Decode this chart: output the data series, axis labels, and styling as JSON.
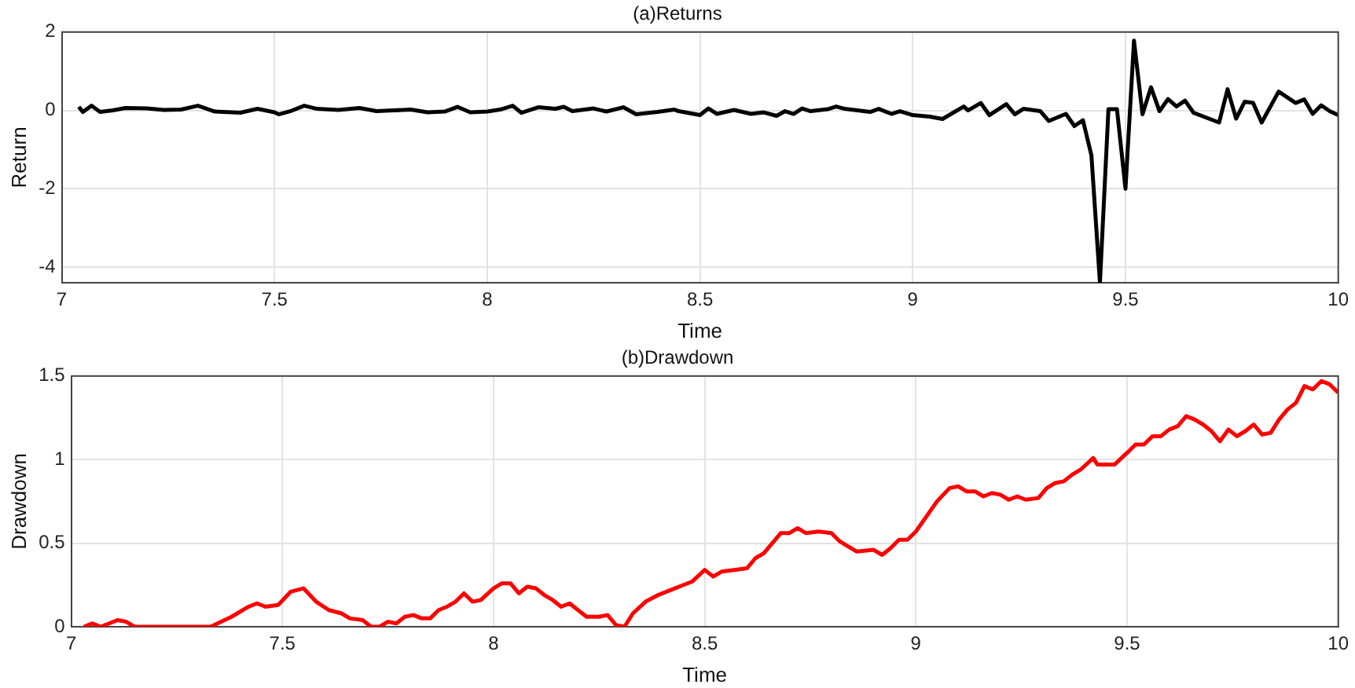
{
  "chart_data": [
    {
      "type": "line",
      "title": "(a)Returns",
      "xlabel": "Time",
      "ylabel": "Return",
      "xlim": [
        7,
        10
      ],
      "xticks": [
        7,
        7.5,
        8,
        8.5,
        9,
        9.5,
        10
      ],
      "ylim": [
        -4.4,
        2
      ],
      "yticks": [
        -4,
        -2,
        0,
        2
      ],
      "grid": true,
      "marker": "none",
      "line_style": "solid",
      "legend": false,
      "series": [
        {
          "color": "#000000",
          "x": [
            7.04,
            7.05,
            7.07,
            7.09,
            7.12,
            7.15,
            7.2,
            7.24,
            7.28,
            7.32,
            7.36,
            7.42,
            7.46,
            7.5,
            7.51,
            7.54,
            7.57,
            7.6,
            7.65,
            7.7,
            7.74,
            7.78,
            7.82,
            7.86,
            7.9,
            7.93,
            7.96,
            8,
            8.03,
            8.06,
            8.08,
            8.12,
            8.16,
            8.18,
            8.2,
            8.25,
            8.28,
            8.32,
            8.35,
            8.4,
            8.44,
            8.45,
            8.5,
            8.52,
            8.54,
            8.58,
            8.62,
            8.65,
            8.68,
            8.7,
            8.72,
            8.74,
            8.76,
            8.8,
            8.82,
            8.84,
            8.87,
            8.9,
            8.92,
            8.95,
            8.97,
            9.0,
            9.04,
            9.07,
            9.12,
            9.13,
            9.16,
            9.18,
            9.22,
            9.24,
            9.26,
            9.3,
            9.32,
            9.36,
            9.38,
            9.4,
            9.42,
            9.44,
            9.46,
            9.48,
            9.5,
            9.52,
            9.54,
            9.56,
            9.58,
            9.6,
            9.62,
            9.64,
            9.66,
            9.72,
            9.74,
            9.76,
            9.78,
            9.8,
            9.82,
            9.86,
            9.9,
            9.92,
            9.94,
            9.96,
            9.98,
            10
          ],
          "values": [
            0.09,
            -0.04,
            0.12,
            -0.04,
            0,
            0.06,
            0.05,
            0.01,
            0.02,
            0.12,
            -0.03,
            -0.06,
            0.04,
            -0.05,
            -0.1,
            -0.01,
            0.12,
            0.04,
            0.01,
            0.06,
            -0.02,
            0,
            0.02,
            -0.05,
            -0.03,
            0.09,
            -0.05,
            -0.03,
            0.02,
            0.12,
            -0.06,
            0.08,
            0.04,
            0.09,
            -0.02,
            0.05,
            -0.03,
            0.08,
            -0.1,
            -0.04,
            0.02,
            -0.02,
            -0.12,
            0.05,
            -0.09,
            0.01,
            -0.09,
            -0.05,
            -0.14,
            -0.02,
            -0.09,
            0.05,
            -0.02,
            0.03,
            0.1,
            0.04,
            0,
            -0.04,
            0.04,
            -0.09,
            -0.02,
            -0.12,
            -0.16,
            -0.22,
            0.1,
            0,
            0.19,
            -0.12,
            0.16,
            -0.1,
            0.04,
            -0.02,
            -0.27,
            -0.09,
            -0.4,
            -0.25,
            -1.15,
            -4.4,
            0.03,
            0.03,
            -2,
            1.78,
            -0.1,
            0.59,
            -0.02,
            0.29,
            0.1,
            0.25,
            -0.06,
            -0.31,
            0.54,
            -0.21,
            0.22,
            0.19,
            -0.31,
            0.48,
            0.19,
            0.28,
            -0.09,
            0.13,
            -0.02,
            -0.12
          ]
        }
      ]
    },
    {
      "type": "line",
      "title": "(b)Drawdown",
      "xlabel": "Time",
      "ylabel": "Drawdown",
      "xlim": [
        7,
        10
      ],
      "xticks": [
        7,
        7.5,
        8,
        8.5,
        9,
        9.5,
        10
      ],
      "ylim": [
        0,
        1.5
      ],
      "yticks": [
        0,
        0.5,
        1,
        1.5
      ],
      "grid": true,
      "marker": "none",
      "line_style": "solid",
      "legend": false,
      "series": [
        {
          "color": "#ff0000",
          "x": [
            7.03,
            7.05,
            7.07,
            7.11,
            7.13,
            7.15,
            7.3,
            7.33,
            7.38,
            7.42,
            7.44,
            7.46,
            7.49,
            7.52,
            7.55,
            7.58,
            7.61,
            7.64,
            7.66,
            7.69,
            7.71,
            7.73,
            7.75,
            7.77,
            7.79,
            7.81,
            7.83,
            7.85,
            7.87,
            7.89,
            7.91,
            7.93,
            7.95,
            7.97,
            8.0,
            8.02,
            8.04,
            8.06,
            8.08,
            8.1,
            8.12,
            8.14,
            8.16,
            8.18,
            8.2,
            8.22,
            8.25,
            8.27,
            8.29,
            8.31,
            8.33,
            8.36,
            8.39,
            8.42,
            8.45,
            8.47,
            8.5,
            8.52,
            8.54,
            8.57,
            8.6,
            8.62,
            8.64,
            8.68,
            8.7,
            8.72,
            8.74,
            8.77,
            8.8,
            8.82,
            8.84,
            8.86,
            8.9,
            8.92,
            8.94,
            8.96,
            8.98,
            9.0,
            9.05,
            9.08,
            9.1,
            9.12,
            9.14,
            9.16,
            9.18,
            9.2,
            9.22,
            9.24,
            9.26,
            9.29,
            9.31,
            9.33,
            9.35,
            9.37,
            9.39,
            9.42,
            9.43,
            9.47,
            9.5,
            9.52,
            9.54,
            9.56,
            9.58,
            9.6,
            9.62,
            9.64,
            9.66,
            9.68,
            9.7,
            9.72,
            9.74,
            9.76,
            9.78,
            9.8,
            9.82,
            9.84,
            9.86,
            9.88,
            9.9,
            9.92,
            9.94,
            9.96,
            9.98,
            10
          ],
          "values": [
            0,
            0.02,
            0,
            0.04,
            0.03,
            0,
            0,
            0,
            0.06,
            0.12,
            0.14,
            0.12,
            0.13,
            0.21,
            0.23,
            0.15,
            0.1,
            0.08,
            0.05,
            0.04,
            0,
            0,
            0.03,
            0.02,
            0.06,
            0.07,
            0.05,
            0.05,
            0.1,
            0.12,
            0.15,
            0.2,
            0.15,
            0.16,
            0.23,
            0.26,
            0.26,
            0.2,
            0.24,
            0.23,
            0.19,
            0.16,
            0.12,
            0.14,
            0.1,
            0.06,
            0.06,
            0.07,
            0.01,
            0,
            0.08,
            0.15,
            0.19,
            0.22,
            0.25,
            0.27,
            0.34,
            0.3,
            0.33,
            0.34,
            0.35,
            0.41,
            0.44,
            0.56,
            0.56,
            0.59,
            0.56,
            0.57,
            0.56,
            0.51,
            0.48,
            0.45,
            0.46,
            0.43,
            0.47,
            0.52,
            0.52,
            0.57,
            0.75,
            0.83,
            0.84,
            0.81,
            0.81,
            0.78,
            0.8,
            0.79,
            0.76,
            0.78,
            0.76,
            0.77,
            0.83,
            0.86,
            0.87,
            0.91,
            0.94,
            1.01,
            0.97,
            0.97,
            1.04,
            1.09,
            1.09,
            1.14,
            1.14,
            1.18,
            1.2,
            1.26,
            1.24,
            1.21,
            1.17,
            1.11,
            1.18,
            1.14,
            1.17,
            1.21,
            1.15,
            1.16,
            1.24,
            1.3,
            1.34,
            1.44,
            1.42,
            1.47,
            1.45,
            1.4
          ]
        }
      ]
    }
  ]
}
